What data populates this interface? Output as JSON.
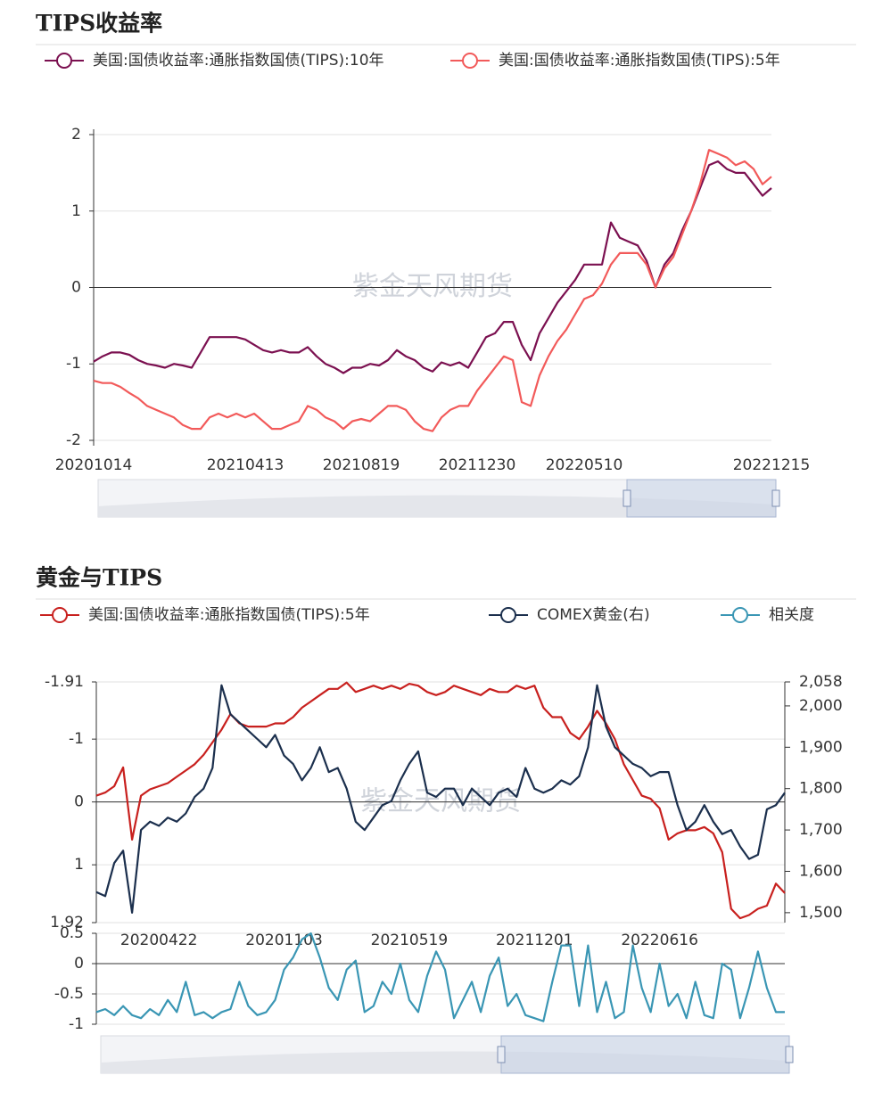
{
  "chart_data": [
    {
      "type": "line",
      "title": "TIPS收益率",
      "watermark": "紫金天风期货",
      "categories": [
        "20201014",
        null,
        null,
        null,
        null,
        null,
        null,
        null,
        null,
        null,
        null,
        null,
        null,
        null,
        null,
        null,
        null,
        "20210413",
        null,
        null,
        null,
        null,
        null,
        null,
        null,
        null,
        null,
        null,
        null,
        null,
        "20210819",
        null,
        null,
        null,
        null,
        null,
        null,
        null,
        null,
        null,
        null,
        null,
        null,
        "20211230",
        null,
        null,
        null,
        null,
        null,
        null,
        null,
        null,
        null,
        null,
        null,
        "20220510",
        null,
        null,
        null,
        null,
        null,
        null,
        null,
        null,
        null,
        null,
        null,
        null,
        null,
        null,
        null,
        null,
        null,
        null,
        null,
        null,
        "20221215"
      ],
      "series": [
        {
          "name": "美国:国债收益率:通胀指数国债(TIPS):10年",
          "color": "#7b1050",
          "values": [
            -0.97,
            -0.9,
            -0.85,
            -0.85,
            -0.88,
            -0.95,
            -1.0,
            -1.02,
            -1.05,
            -1.0,
            -1.02,
            -1.05,
            -0.85,
            -0.65,
            -0.65,
            -0.65,
            -0.65,
            -0.68,
            -0.75,
            -0.82,
            -0.85,
            -0.82,
            -0.85,
            -0.85,
            -0.78,
            -0.9,
            -1.0,
            -1.05,
            -1.12,
            -1.05,
            -1.05,
            -1.0,
            -1.02,
            -0.95,
            -0.82,
            -0.9,
            -0.95,
            -1.05,
            -1.1,
            -0.98,
            -1.02,
            -0.98,
            -1.05,
            -0.85,
            -0.65,
            -0.6,
            -0.45,
            -0.45,
            -0.75,
            -0.95,
            -0.6,
            -0.4,
            -0.2,
            -0.05,
            0.1,
            0.3,
            0.3,
            0.3,
            0.85,
            0.65,
            0.6,
            0.55,
            0.35,
            0.0,
            0.3,
            0.45,
            0.75,
            1.0,
            1.3,
            1.6,
            1.65,
            1.55,
            1.5,
            1.5,
            1.35,
            1.2,
            1.3
          ]
        },
        {
          "name": "美国:国债收益率:通胀指数国债(TIPS):5年",
          "color": "#f25a5a",
          "values": [
            -1.22,
            -1.25,
            -1.25,
            -1.3,
            -1.38,
            -1.45,
            -1.55,
            -1.6,
            -1.65,
            -1.7,
            -1.8,
            -1.85,
            -1.85,
            -1.7,
            -1.65,
            -1.7,
            -1.65,
            -1.7,
            -1.65,
            -1.75,
            -1.85,
            -1.85,
            -1.8,
            -1.75,
            -1.55,
            -1.6,
            -1.7,
            -1.75,
            -1.85,
            -1.75,
            -1.72,
            -1.75,
            -1.65,
            -1.55,
            -1.55,
            -1.6,
            -1.75,
            -1.85,
            -1.88,
            -1.7,
            -1.6,
            -1.55,
            -1.55,
            -1.35,
            -1.2,
            -1.05,
            -0.9,
            -0.95,
            -1.5,
            -1.55,
            -1.15,
            -0.9,
            -0.7,
            -0.55,
            -0.35,
            -0.15,
            -0.1,
            0.05,
            0.3,
            0.45,
            0.45,
            0.45,
            0.3,
            0.0,
            0.25,
            0.4,
            0.7,
            1.0,
            1.35,
            1.8,
            1.75,
            1.7,
            1.6,
            1.65,
            1.55,
            1.35,
            1.45
          ]
        }
      ],
      "ylim": [
        -2.07,
        2.07
      ],
      "yticks": [
        -2,
        -1,
        0,
        1,
        2
      ],
      "grid": true
    },
    {
      "type": "line",
      "title": "黄金与TIPS",
      "watermark": "紫金天风期货",
      "categories": [
        null,
        null,
        null,
        null,
        null,
        null,
        null,
        "20200422",
        null,
        null,
        null,
        null,
        null,
        null,
        null,
        null,
        null,
        null,
        null,
        null,
        null,
        "20201103",
        null,
        null,
        null,
        null,
        null,
        null,
        null,
        null,
        null,
        null,
        null,
        null,
        null,
        "20210519",
        null,
        null,
        null,
        null,
        null,
        null,
        null,
        null,
        null,
        null,
        null,
        null,
        null,
        "20211201",
        null,
        null,
        null,
        null,
        null,
        null,
        null,
        null,
        null,
        null,
        null,
        null,
        null,
        "20220616",
        null,
        null,
        null,
        null,
        null,
        null,
        null,
        null,
        null,
        null,
        null,
        null,
        null,
        null
      ],
      "series": [
        {
          "name": "美国:国债收益率:通胀指数国债(TIPS):5年",
          "color": "#c8201e",
          "axis": "y",
          "values": [
            -0.1,
            -0.15,
            -0.25,
            -0.55,
            0.6,
            -0.1,
            -0.2,
            -0.25,
            -0.3,
            -0.4,
            -0.5,
            -0.6,
            -0.75,
            -0.95,
            -1.15,
            -1.4,
            -1.25,
            -1.2,
            -1.2,
            -1.2,
            -1.25,
            -1.25,
            -1.35,
            -1.5,
            -1.6,
            -1.7,
            -1.8,
            -1.8,
            -1.9,
            -1.75,
            -1.8,
            -1.85,
            -1.8,
            -1.85,
            -1.8,
            -1.88,
            -1.85,
            -1.75,
            -1.7,
            -1.75,
            -1.85,
            -1.8,
            -1.75,
            -1.7,
            -1.8,
            -1.75,
            -1.75,
            -1.85,
            -1.8,
            -1.85,
            -1.5,
            -1.35,
            -1.35,
            -1.1,
            -1.0,
            -1.2,
            -1.45,
            -1.25,
            -1.0,
            -0.6,
            -0.35,
            -0.1,
            -0.05,
            0.1,
            0.6,
            0.5,
            0.45,
            0.45,
            0.4,
            0.5,
            0.8,
            1.7,
            1.85,
            1.8,
            1.7,
            1.65,
            1.3,
            1.45
          ]
        },
        {
          "name": "COMEX黄金(右)",
          "color": "#1b2f4d",
          "axis": "y2",
          "values": [
            1550,
            1540,
            1620,
            1650,
            1500,
            1700,
            1720,
            1710,
            1730,
            1720,
            1740,
            1780,
            1800,
            1850,
            2050,
            1980,
            1960,
            1940,
            1920,
            1900,
            1930,
            1880,
            1860,
            1820,
            1850,
            1900,
            1840,
            1850,
            1800,
            1720,
            1700,
            1730,
            1760,
            1770,
            1820,
            1860,
            1890,
            1790,
            1780,
            1800,
            1800,
            1760,
            1800,
            1780,
            1760,
            1790,
            1800,
            1780,
            1850,
            1800,
            1790,
            1800,
            1820,
            1810,
            1830,
            1900,
            2050,
            1950,
            1900,
            1880,
            1860,
            1850,
            1830,
            1840,
            1840,
            1760,
            1700,
            1720,
            1760,
            1720,
            1690,
            1700,
            1660,
            1630,
            1640,
            1750,
            1760,
            1790
          ]
        },
        {
          "name": "相关度",
          "color": "#3a96b4",
          "axis": "y3",
          "values": [
            -0.8,
            -0.75,
            -0.85,
            -0.7,
            -0.85,
            -0.9,
            -0.75,
            -0.85,
            -0.6,
            -0.8,
            -0.3,
            -0.85,
            -0.8,
            -0.9,
            -0.8,
            -0.75,
            -0.3,
            -0.7,
            -0.85,
            -0.8,
            -0.6,
            -0.1,
            0.1,
            0.4,
            0.5,
            0.1,
            -0.4,
            -0.6,
            -0.1,
            0.05,
            -0.8,
            -0.7,
            -0.3,
            -0.5,
            0.0,
            -0.6,
            -0.8,
            -0.2,
            0.2,
            -0.1,
            -0.9,
            -0.6,
            -0.3,
            -0.8,
            -0.2,
            0.1,
            -0.7,
            -0.5,
            -0.85,
            -0.9,
            -0.95,
            -0.3,
            0.3,
            0.3,
            -0.7,
            0.3,
            -0.8,
            -0.3,
            -0.9,
            -0.8,
            0.3,
            -0.4,
            -0.8,
            0.0,
            -0.7,
            -0.5,
            -0.9,
            -0.3,
            -0.85,
            -0.9,
            0.0,
            -0.1,
            -0.9,
            -0.4,
            0.2,
            -0.4,
            -0.8,
            -0.8
          ]
        }
      ],
      "ylim": [
        -1.91,
        1.92
      ],
      "y_inverted": true,
      "yticks": [
        -1.91,
        -1,
        0,
        1,
        1.92
      ],
      "grid": true,
      "y2lim": [
        1476,
        2058
      ],
      "y2ticks": [
        {
          "value": 2058,
          "label": "2,058"
        },
        {
          "value": 2000,
          "label": "2,000"
        },
        {
          "value": 1900,
          "label": "1,900"
        },
        {
          "value": 1800,
          "label": "1,800"
        },
        {
          "value": 1700,
          "label": "1,700"
        },
        {
          "value": 1600,
          "label": "1,600"
        },
        {
          "value": 1500,
          "label": "1,500"
        }
      ],
      "y3lim": [
        -1,
        0.5
      ],
      "y3ticks": [
        0.5,
        0,
        -0.5,
        -1
      ]
    }
  ]
}
